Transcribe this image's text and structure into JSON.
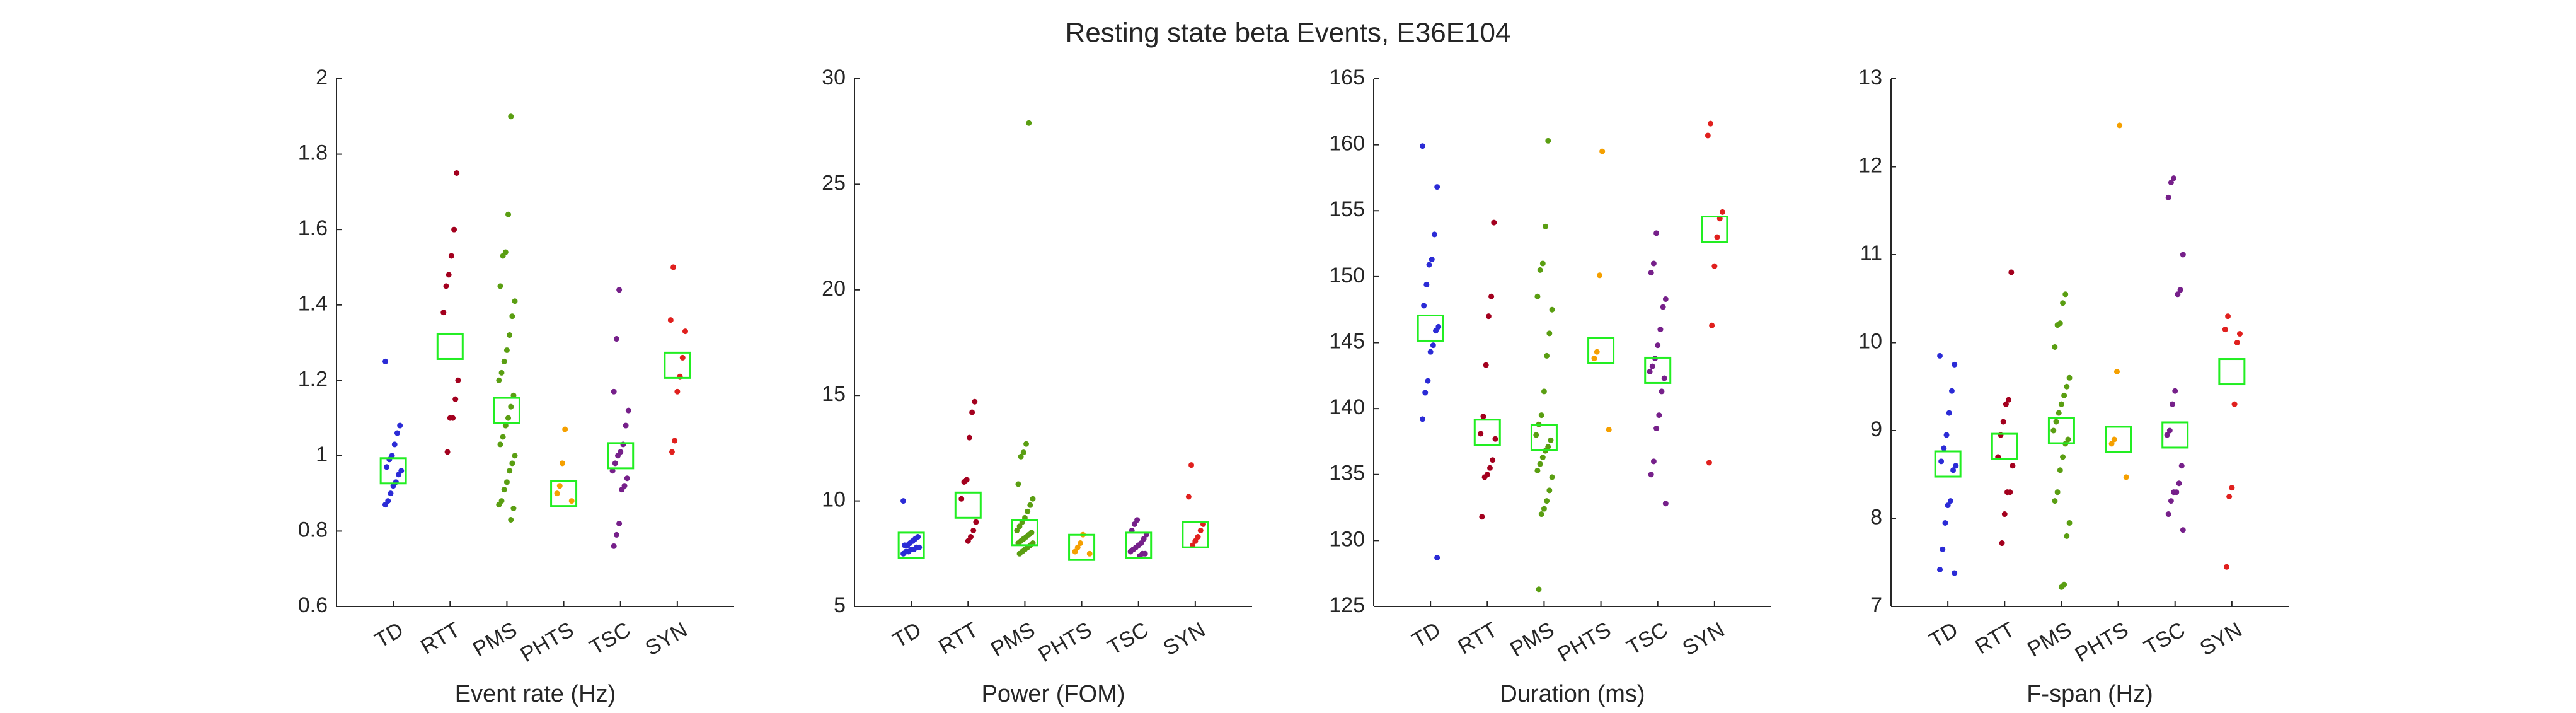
{
  "title": "Resting state beta Events, E36E104",
  "chart_data": [
    {
      "type": "strip",
      "xlabel": "Event rate (Hz)",
      "categories": [
        "TD",
        "RTT",
        "PMS",
        "PHTS",
        "TSC",
        "SYN"
      ],
      "colors": [
        "#2b2bd6",
        "#a3001e",
        "#5a9e12",
        "#f5a000",
        "#76208a",
        "#e0201e"
      ],
      "center_color": "#22ee22",
      "points": [
        [
          1.25,
          1.08,
          1.06,
          1.03,
          1.0,
          0.99,
          0.97,
          0.96,
          0.95,
          0.93,
          0.92,
          0.9,
          0.88,
          0.87
        ],
        [
          1.75,
          1.6,
          1.53,
          1.48,
          1.45,
          1.38,
          1.2,
          1.15,
          1.1,
          1.1,
          1.01
        ],
        [
          1.9,
          1.64,
          1.54,
          1.53,
          1.45,
          1.41,
          1.37,
          1.32,
          1.28,
          1.25,
          1.22,
          1.2,
          1.16,
          1.13,
          1.1,
          1.08,
          1.05,
          1.03,
          1.0,
          0.98,
          0.96,
          0.93,
          0.91,
          0.88,
          0.87,
          0.86,
          0.83
        ],
        [
          1.07,
          0.98,
          0.92,
          0.9,
          0.88
        ],
        [
          1.44,
          1.31,
          1.17,
          1.12,
          1.08,
          1.03,
          1.01,
          1.0,
          0.98,
          0.96,
          0.94,
          0.92,
          0.91,
          0.82,
          0.79,
          0.76
        ],
        [
          1.5,
          1.36,
          1.33,
          1.26,
          1.21,
          1.17,
          1.04,
          1.01
        ]
      ],
      "centers": [
        0.96,
        1.29,
        1.12,
        0.9,
        1.0,
        1.24
      ],
      "ylim": [
        0.6,
        2
      ],
      "yticks": [
        0.6,
        0.8,
        1,
        1.2,
        1.4,
        1.6,
        1.8,
        2
      ]
    },
    {
      "type": "strip",
      "xlabel": "Power (FOM)",
      "categories": [
        "TD",
        "RTT",
        "PMS",
        "PHTS",
        "TSC",
        "SYN"
      ],
      "colors": [
        "#2b2bd6",
        "#a3001e",
        "#5a9e12",
        "#f5a000",
        "#76208a",
        "#e0201e"
      ],
      "center_color": "#22ee22",
      "points": [
        [
          10,
          8.3,
          8.2,
          8.1,
          8.0,
          7.9,
          7.9,
          7.8,
          7.8,
          7.7,
          7.7,
          7.6,
          7.6,
          7.5
        ],
        [
          14.7,
          14.2,
          13.0,
          11.0,
          10.9,
          10.1,
          9.0,
          8.6,
          8.3,
          8.1
        ],
        [
          27.9,
          12.7,
          12.3,
          12.1,
          10.8,
          10.1,
          9.8,
          9.5,
          9.2,
          9.0,
          8.8,
          8.6,
          8.5,
          8.4,
          8.3,
          8.2,
          8.1,
          8.0,
          8.0,
          7.9,
          7.8,
          7.7,
          7.6,
          7.5
        ],
        [
          8.4,
          8.0,
          7.8,
          7.6,
          7.5
        ],
        [
          9.1,
          8.9,
          8.6,
          8.4,
          8.2,
          8.0,
          7.9,
          7.8,
          7.7,
          7.6,
          7.5,
          7.5,
          7.4
        ],
        [
          11.7,
          10.2,
          8.9,
          8.6,
          8.3,
          8.1,
          7.9
        ]
      ],
      "centers": [
        7.9,
        9.8,
        8.5,
        7.8,
        7.9,
        8.4
      ],
      "ylim": [
        5,
        30
      ],
      "yticks": [
        5,
        10,
        15,
        20,
        25,
        30
      ]
    },
    {
      "type": "strip",
      "xlabel": "Duration (ms)",
      "categories": [
        "TD",
        "RTT",
        "PMS",
        "PHTS",
        "TSC",
        "SYN"
      ],
      "colors": [
        "#2b2bd6",
        "#a3001e",
        "#5a9e12",
        "#f5a000",
        "#76208a",
        "#e0201e"
      ],
      "center_color": "#22ee22",
      "points": [
        [
          159.9,
          156.8,
          153.2,
          151.3,
          150.9,
          149.4,
          147.8,
          146.2,
          145.9,
          144.8,
          144.3,
          142.1,
          141.2,
          139.2,
          128.7
        ],
        [
          154.1,
          148.5,
          147.0,
          143.3,
          139.4,
          138.1,
          137.7,
          136.1,
          135.5,
          135.0,
          134.8,
          131.8
        ],
        [
          160.3,
          153.8,
          151.0,
          150.5,
          148.5,
          147.5,
          145.7,
          144.0,
          141.3,
          139.5,
          138.8,
          138.0,
          137.6,
          137.1,
          136.8,
          136.3,
          135.8,
          135.3,
          134.8,
          133.8,
          133.0,
          132.4,
          132.0,
          126.3
        ],
        [
          159.5,
          150.1,
          144.3,
          143.8,
          138.4
        ],
        [
          153.3,
          151.0,
          150.3,
          148.3,
          147.7,
          146.0,
          144.8,
          143.8,
          143.2,
          142.8,
          142.3,
          141.3,
          139.5,
          138.5,
          136.0,
          135.0,
          132.8
        ],
        [
          161.6,
          160.7,
          154.9,
          154.4,
          153.0,
          150.8,
          146.3,
          135.9
        ]
      ],
      "centers": [
        146.1,
        138.2,
        137.8,
        144.4,
        142.9,
        153.6
      ],
      "ylim": [
        125,
        165
      ],
      "yticks": [
        125,
        130,
        135,
        140,
        145,
        150,
        155,
        160,
        165
      ]
    },
    {
      "type": "strip",
      "xlabel": "F-span (Hz)",
      "categories": [
        "TD",
        "RTT",
        "PMS",
        "PHTS",
        "TSC",
        "SYN"
      ],
      "colors": [
        "#2b2bd6",
        "#a3001e",
        "#5a9e12",
        "#f5a000",
        "#76208a",
        "#e0201e"
      ],
      "center_color": "#22ee22",
      "points": [
        [
          9.85,
          9.75,
          9.45,
          9.2,
          8.95,
          8.8,
          8.65,
          8.6,
          8.55,
          8.2,
          8.15,
          7.95,
          7.65,
          7.42,
          7.38
        ],
        [
          10.8,
          9.35,
          9.3,
          9.1,
          8.95,
          8.7,
          8.6,
          8.3,
          8.3,
          8.05,
          7.72
        ],
        [
          10.55,
          10.45,
          10.22,
          10.2,
          9.95,
          9.6,
          9.5,
          9.4,
          9.3,
          9.2,
          9.1,
          9.0,
          8.9,
          8.85,
          8.7,
          8.55,
          8.3,
          8.2,
          7.95,
          7.8,
          7.25,
          7.22
        ],
        [
          12.47,
          9.67,
          8.9,
          8.85,
          8.47
        ],
        [
          11.87,
          11.82,
          11.65,
          11.0,
          10.6,
          10.55,
          9.45,
          9.3,
          9.0,
          8.95,
          8.6,
          8.4,
          8.3,
          8.3,
          8.2,
          8.05,
          7.87
        ],
        [
          10.3,
          10.15,
          10.1,
          10.0,
          9.3,
          8.35,
          8.25,
          7.45
        ]
      ],
      "centers": [
        8.62,
        8.82,
        9.0,
        8.9,
        8.95,
        9.67
      ],
      "ylim": [
        7,
        13
      ],
      "yticks": [
        7,
        8,
        9,
        10,
        11,
        12,
        13
      ]
    }
  ]
}
